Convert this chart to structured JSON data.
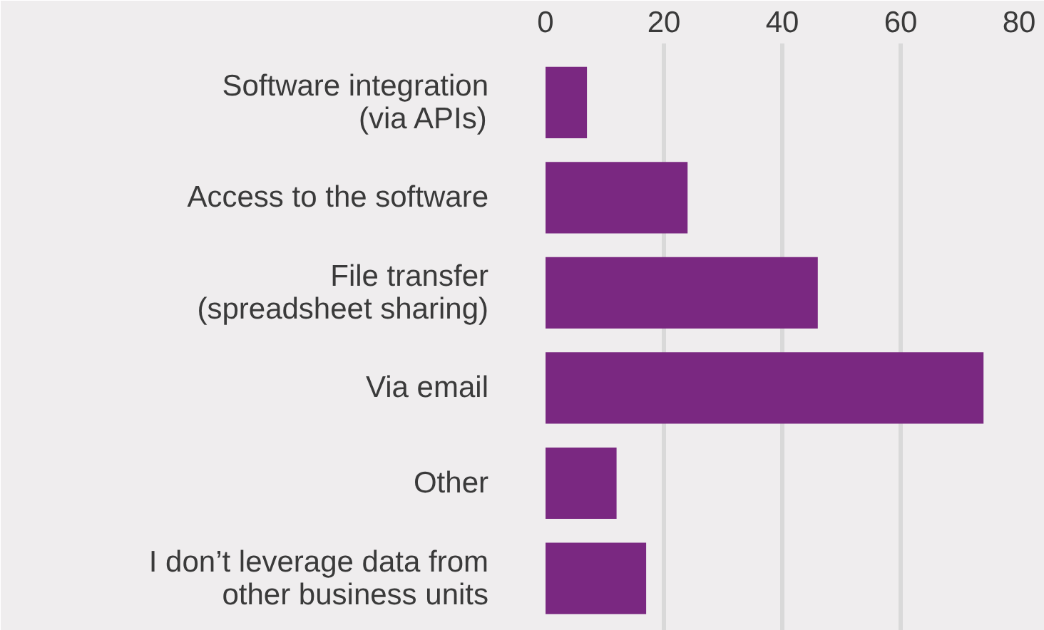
{
  "chart_data": {
    "type": "bar",
    "orientation": "horizontal",
    "categories": [
      "Software integration\n(via APIs)",
      "Access to the software",
      "File transfer\n(spreadsheet sharing)",
      "Via email",
      "Other",
      "I don’t leverage data from\nother business units"
    ],
    "values": [
      7,
      24,
      46,
      74,
      12,
      17
    ],
    "color": "#7a2881",
    "xlim": [
      0,
      80
    ],
    "xticks": [
      0,
      20,
      40,
      60,
      80
    ],
    "grid": "x"
  }
}
